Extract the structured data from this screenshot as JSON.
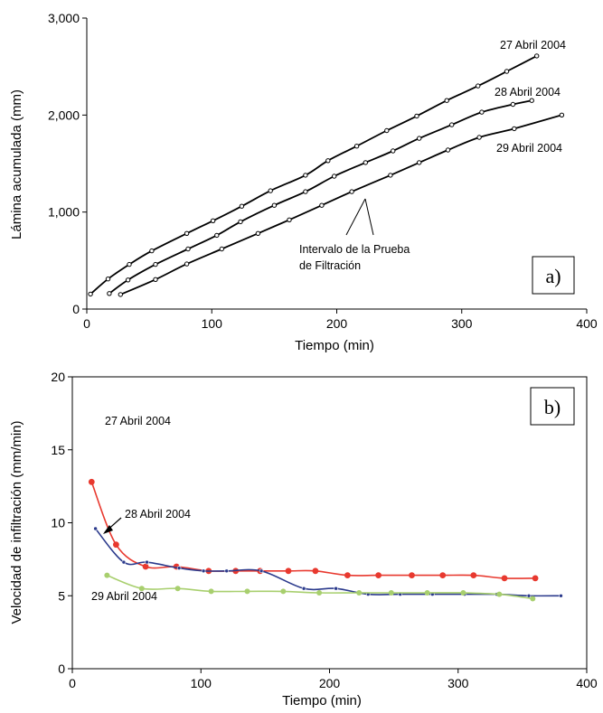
{
  "chart_data": [
    {
      "type": "line",
      "panel_label": "a)",
      "xlabel": "Tiempo  (min)",
      "ylabel": "Lámina acumulada  (mm)",
      "xlim": [
        0,
        400
      ],
      "ylim": [
        0,
        3000
      ],
      "x_ticks": [
        "0",
        "100",
        "200",
        "300",
        "400"
      ],
      "y_ticks": [
        "0",
        "1,000",
        "2,000",
        "3,000"
      ],
      "grid": false,
      "series": [
        {
          "name": "27 Abril 2004",
          "color": "#000000",
          "x": [
            3,
            17,
            34,
            52,
            80,
            101,
            124,
            147,
            175,
            193,
            216,
            240,
            264,
            288,
            313,
            336,
            360
          ],
          "y": [
            155,
            310,
            460,
            600,
            780,
            910,
            1060,
            1220,
            1380,
            1530,
            1680,
            1840,
            1990,
            2150,
            2300,
            2450,
            2610
          ]
        },
        {
          "name": "28 Abril 2004",
          "color": "#000000",
          "x": [
            18,
            33,
            55,
            81,
            104,
            123,
            150,
            175,
            198,
            223,
            245,
            266,
            292,
            316,
            341,
            356
          ],
          "y": [
            160,
            300,
            460,
            620,
            760,
            900,
            1070,
            1210,
            1370,
            1510,
            1630,
            1760,
            1900,
            2030,
            2110,
            2150
          ]
        },
        {
          "name": "29 Abril 2004",
          "color": "#000000",
          "x": [
            27,
            55,
            80,
            108,
            137,
            162,
            188,
            212,
            243,
            266,
            289,
            314,
            342,
            380
          ],
          "y": [
            150,
            305,
            465,
            620,
            780,
            920,
            1070,
            1210,
            1380,
            1510,
            1640,
            1770,
            1860,
            2000
          ]
        }
      ],
      "annotations": [
        {
          "text_lines": [
            "Intervalo de la Prueba",
            "de Filtración"
          ]
        }
      ]
    },
    {
      "type": "line",
      "panel_label": "b)",
      "xlabel": "Tiempo (min)",
      "ylabel": "Velocidad de infiltración (mm/min)",
      "xlim": [
        0,
        400
      ],
      "ylim": [
        0,
        20
      ],
      "x_ticks": [
        "0",
        "100",
        "200",
        "300",
        "400"
      ],
      "y_ticks": [
        "0",
        "5",
        "10",
        "15",
        "20"
      ],
      "grid": false,
      "series": [
        {
          "name": "27 Abril 2004",
          "color": "#e8392f",
          "x": [
            15,
            34,
            57,
            81,
            106,
            127,
            146,
            168,
            189,
            214,
            238,
            264,
            288,
            312,
            336,
            360
          ],
          "y": [
            12.8,
            8.5,
            7.0,
            7.0,
            6.7,
            6.7,
            6.7,
            6.7,
            6.7,
            6.4,
            6.4,
            6.4,
            6.4,
            6.4,
            6.2,
            6.2
          ]
        },
        {
          "name": "28 Abril 2004",
          "color": "#2b3a8c",
          "x": [
            18,
            40,
            58,
            83,
            102,
            120,
            147,
            180,
            205,
            230,
            255,
            280,
            305,
            330,
            355,
            380
          ],
          "y": [
            9.6,
            7.3,
            7.3,
            6.9,
            6.7,
            6.7,
            6.7,
            5.5,
            5.5,
            5.1,
            5.1,
            5.1,
            5.1,
            5.1,
            5.0,
            5.0
          ]
        },
        {
          "name": "29 Abril 2004",
          "color": "#a8cf6e",
          "x": [
            27,
            54,
            82,
            108,
            136,
            164,
            192,
            223,
            248,
            276,
            304,
            332,
            358
          ],
          "y": [
            6.4,
            5.5,
            5.5,
            5.3,
            5.3,
            5.3,
            5.2,
            5.2,
            5.2,
            5.2,
            5.2,
            5.1,
            4.8
          ]
        }
      ]
    }
  ]
}
